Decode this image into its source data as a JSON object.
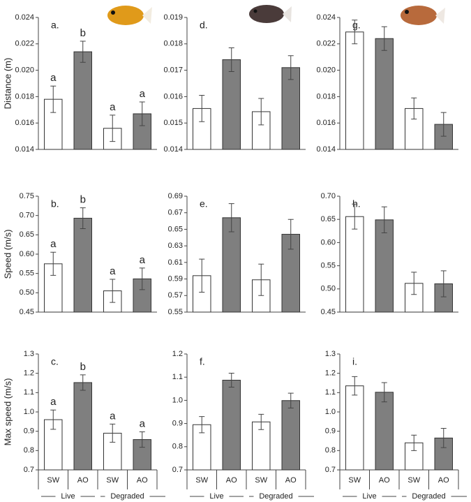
{
  "chart_data": [
    {
      "type": "bar",
      "title": "a.",
      "ylabel": "Distance (m)",
      "categories": [
        null,
        null,
        null,
        null
      ],
      "values": [
        0.0178,
        0.0214,
        0.0156,
        0.0167
      ],
      "errors": [
        0.001,
        0.0008,
        0.001,
        0.0009
      ],
      "colors": [
        "#ffffff",
        "#7f7f7f",
        "#ffffff",
        "#7f7f7f"
      ],
      "annotations": [
        "a",
        "b",
        "a",
        "a"
      ],
      "ylim": [
        0.014,
        0.024
      ],
      "yticks": [
        0.014,
        0.016,
        0.018,
        {
          "value": 0.02,
          "label": "0.020"
        },
        0.022,
        0.024
      ]
    },
    {
      "type": "bar",
      "title": "d.",
      "categories": [
        null,
        null,
        null,
        null
      ],
      "values": [
        0.01555,
        0.0174,
        0.01543,
        0.0171
      ],
      "errors": [
        0.0005,
        0.00045,
        0.0005,
        0.00045
      ],
      "colors": [
        "#ffffff",
        "#7f7f7f",
        "#ffffff",
        "#7f7f7f"
      ],
      "ylim": [
        0.014,
        0.019
      ],
      "yticks": [
        0.014,
        0.015,
        0.016,
        0.017,
        0.018,
        0.019
      ]
    },
    {
      "type": "bar",
      "title": "g.",
      "categories": [
        null,
        null,
        null,
        null
      ],
      "values": [
        0.0229,
        0.0224,
        0.0171,
        0.0159
      ],
      "errors": [
        0.0009,
        0.0009,
        0.0008,
        0.0009
      ],
      "colors": [
        "#ffffff",
        "#7f7f7f",
        "#ffffff",
        "#7f7f7f"
      ],
      "ylim": [
        0.014,
        0.024
      ],
      "yticks": [
        0.014,
        0.016,
        0.018,
        {
          "value": 0.02,
          "label": "0.020"
        },
        0.022,
        0.024
      ]
    },
    {
      "type": "bar",
      "title": "b.",
      "ylabel": "Speed (m/s)",
      "categories": [
        null,
        null,
        null,
        null
      ],
      "values": [
        0.575,
        0.693,
        0.505,
        0.536
      ],
      "errors": [
        0.03,
        0.027,
        0.03,
        0.028
      ],
      "colors": [
        "#ffffff",
        "#7f7f7f",
        "#ffffff",
        "#7f7f7f"
      ],
      "annotations": [
        "a",
        "b",
        "a",
        "a"
      ],
      "ylim": [
        0.45,
        0.75
      ],
      "yticks": [
        0.45,
        {
          "value": 0.5,
          "label": "0.50"
        },
        0.55,
        {
          "value": 0.6,
          "label": "0.60"
        },
        0.65,
        {
          "value": 0.7,
          "label": "0.70"
        },
        0.75
      ]
    },
    {
      "type": "bar",
      "title": "e.",
      "categories": [
        null,
        null,
        null,
        null
      ],
      "values": [
        0.594,
        0.664,
        0.589,
        0.644
      ],
      "errors": [
        0.02,
        0.017,
        0.019,
        0.018
      ],
      "colors": [
        "#ffffff",
        "#7f7f7f",
        "#ffffff",
        "#7f7f7f"
      ],
      "ylim": [
        0.55,
        0.69
      ],
      "yticks": [
        0.55,
        0.57,
        0.59,
        0.61,
        0.63,
        0.65,
        0.67,
        0.69
      ]
    },
    {
      "type": "bar",
      "title": "h.",
      "categories": [
        null,
        null,
        null,
        null
      ],
      "values": [
        0.656,
        0.649,
        0.512,
        0.511
      ],
      "errors": [
        0.027,
        0.028,
        0.024,
        0.028
      ],
      "colors": [
        "#ffffff",
        "#7f7f7f",
        "#ffffff",
        "#7f7f7f"
      ],
      "ylim": [
        0.45,
        0.7
      ],
      "yticks": [
        0.45,
        {
          "value": 0.5,
          "label": "0.50"
        },
        0.55,
        {
          "value": 0.6,
          "label": "0.60"
        },
        0.65,
        {
          "value": 0.7,
          "label": "0.70"
        }
      ]
    },
    {
      "type": "bar",
      "title": "c.",
      "ylabel": "Max speed (m/s)",
      "categories": [
        "SW",
        "AO",
        "SW",
        "AO"
      ],
      "groups": [
        "Live",
        "Degraded"
      ],
      "values": [
        0.96,
        1.152,
        0.89,
        0.857
      ],
      "errors": [
        0.05,
        0.04,
        0.047,
        0.04
      ],
      "colors": [
        "#ffffff",
        "#7f7f7f",
        "#ffffff",
        "#7f7f7f"
      ],
      "annotations": [
        "a",
        "b",
        "a",
        "a"
      ],
      "ylim": [
        0.7,
        1.3
      ],
      "yticks": [
        0.7,
        0.8,
        0.9,
        {
          "value": 1,
          "label": "1.0"
        },
        1.1,
        1.2,
        1.3
      ]
    },
    {
      "type": "bar",
      "title": "f.",
      "categories": [
        "SW",
        "AO",
        "SW",
        "AO"
      ],
      "groups": [
        "Live",
        "Degraded"
      ],
      "values": [
        0.895,
        1.087,
        0.907,
        0.999
      ],
      "errors": [
        0.035,
        0.03,
        0.033,
        0.032
      ],
      "colors": [
        "#ffffff",
        "#7f7f7f",
        "#ffffff",
        "#7f7f7f"
      ],
      "ylim": [
        0.7,
        1.2
      ],
      "yticks": [
        0.7,
        0.8,
        0.9,
        {
          "value": 1,
          "label": "1.0"
        },
        1.1,
        1.2
      ]
    },
    {
      "type": "bar",
      "title": "i.",
      "categories": [
        "SW",
        "AO",
        "SW",
        "AO"
      ],
      "groups": [
        "Live",
        "Degraded"
      ],
      "values": [
        1.135,
        1.102,
        0.84,
        0.865
      ],
      "errors": [
        0.048,
        0.05,
        0.04,
        0.05
      ],
      "colors": [
        "#ffffff",
        "#7f7f7f",
        "#ffffff",
        "#7f7f7f"
      ],
      "ylim": [
        0.7,
        1.3
      ],
      "yticks": [
        0.7,
        0.8,
        0.9,
        {
          "value": 1,
          "label": "1.0"
        },
        1.1,
        1.2,
        1.3
      ]
    }
  ]
}
